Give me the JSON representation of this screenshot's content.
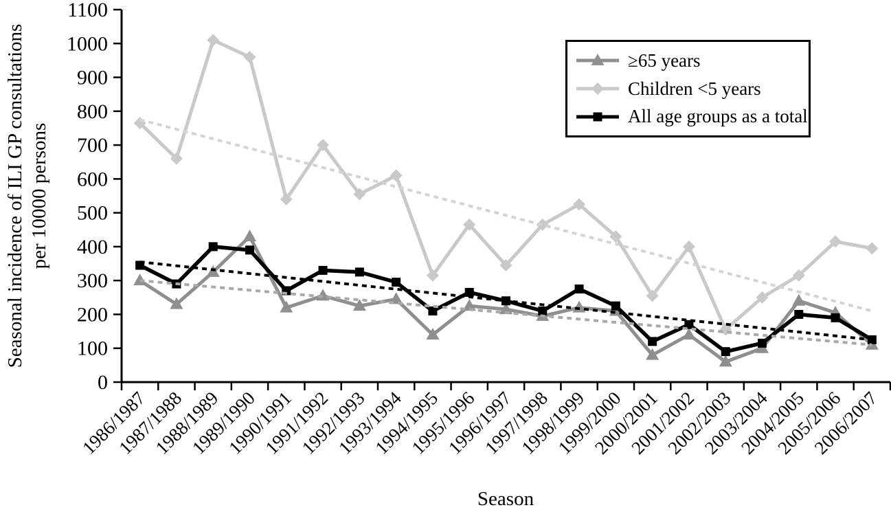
{
  "chart_data": {
    "type": "line",
    "title": "",
    "xlabel": "Season",
    "ylabel": "Seasonal incidence of ILI GP consultations per 10000 persons",
    "ylabel_lines": [
      "Seasonal incidence of ILI GP consultations",
      "per 10000 persons"
    ],
    "ylim": [
      0,
      1100
    ],
    "ytick_step": 100,
    "grid": false,
    "legend_position": "top-right",
    "categories": [
      "1986/1987",
      "1987/1988",
      "1988/1989",
      "1989/1990",
      "1990/1991",
      "1991/1992",
      "1992/1993",
      "1993/1994",
      "1994/1995",
      "1995/1996",
      "1996/1997",
      "1997/1998",
      "1998/1999",
      "1999/2000",
      "2000/2001",
      "2001/2002",
      "2002/2003",
      "2003/2004",
      "2004/2005",
      "2005/2006",
      "2006/2007"
    ],
    "series": [
      {
        "name": "≥65 years",
        "marker": "triangle",
        "color": "#8f8f8f",
        "line_width": 5,
        "values": [
          300,
          230,
          325,
          430,
          220,
          255,
          225,
          245,
          140,
          225,
          215,
          195,
          220,
          210,
          80,
          140,
          60,
          100,
          240,
          205,
          110
        ]
      },
      {
        "name": "Children <5 years",
        "marker": "diamond",
        "color": "#c9c9c9",
        "line_width": 5,
        "values": [
          765,
          660,
          1010,
          960,
          540,
          700,
          555,
          610,
          315,
          465,
          345,
          465,
          525,
          430,
          255,
          400,
          155,
          250,
          315,
          415,
          395
        ]
      },
      {
        "name": "All age groups as a total",
        "marker": "square",
        "color": "#000000",
        "line_width": 5.5,
        "values": [
          345,
          290,
          400,
          390,
          270,
          330,
          325,
          295,
          210,
          265,
          240,
          210,
          275,
          225,
          120,
          170,
          90,
          115,
          200,
          190,
          125
        ]
      }
    ],
    "trendlines": [
      {
        "series": "≥65 years",
        "color": "#a9a9a9",
        "style": "dashed",
        "start": 300,
        "end": 110
      },
      {
        "series": "Children <5 years",
        "color": "#d4d4d4",
        "style": "dashed",
        "start": 775,
        "end": 210
      },
      {
        "series": "All age groups as a total",
        "color": "#000000",
        "style": "dashed",
        "start": 355,
        "end": 125
      }
    ]
  }
}
